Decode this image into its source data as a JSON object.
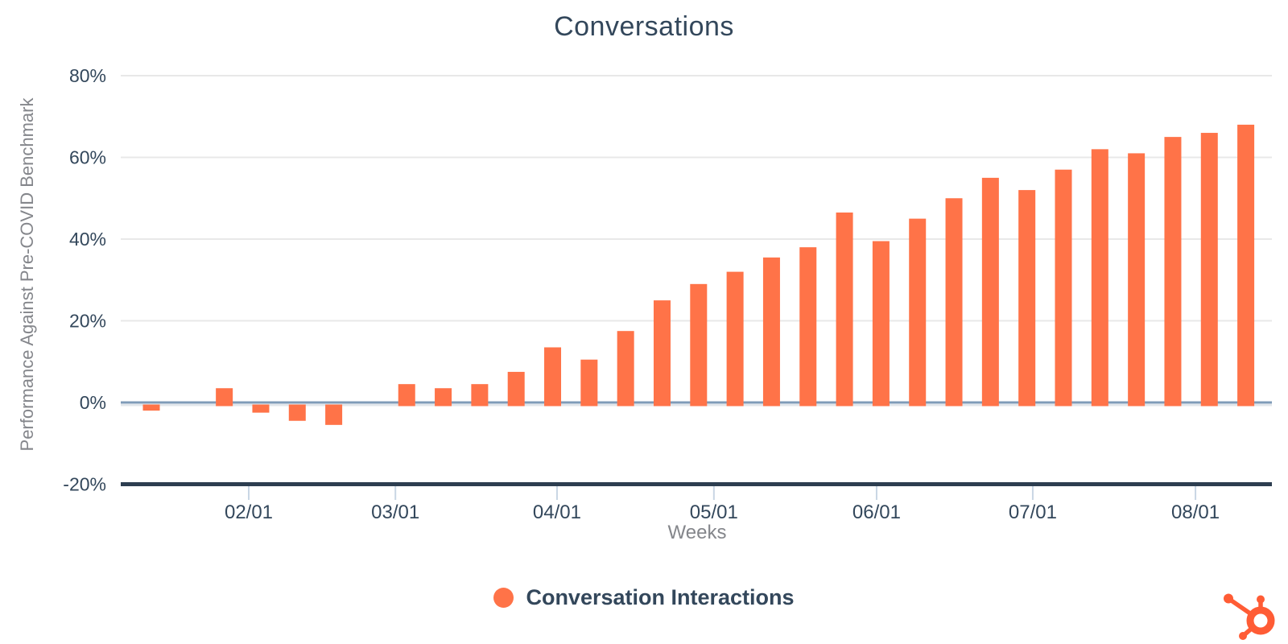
{
  "chart_data": {
    "type": "bar",
    "title": "Conversations",
    "xlabel": "Weeks",
    "ylabel": "Performance Against Pre-COVID Benchmark",
    "ylim": [
      -20,
      80
    ],
    "grid": true,
    "y_ticks": [
      {
        "value": 80,
        "label": "80%"
      },
      {
        "value": 60,
        "label": "60%"
      },
      {
        "value": 40,
        "label": "40%"
      },
      {
        "value": 20,
        "label": "20%"
      },
      {
        "value": 0,
        "label": "0%"
      },
      {
        "value": -20,
        "label": "-20%"
      }
    ],
    "x_ticks": [
      "02/01",
      "03/01",
      "04/01",
      "05/01",
      "06/01",
      "07/01",
      "08/01"
    ],
    "bar_interval": "weekly",
    "series": [
      {
        "name": "Conversation Interactions",
        "values": [
          -1,
          0,
          3.5,
          -1.5,
          -3.5,
          -4.5,
          0,
          4.5,
          3.5,
          4.5,
          7.5,
          13.5,
          10.5,
          17.5,
          25,
          29,
          32,
          35.5,
          38,
          46.5,
          39.5,
          45,
          50,
          55,
          52,
          57,
          62,
          61,
          65,
          66,
          68
        ]
      }
    ],
    "legend_position": "bottom-center",
    "value_unit": "%"
  },
  "colors": {
    "bar": "#ff7348",
    "legend_dot": "#ff7348",
    "zero_line": "#7f9bb8",
    "zero_line_shadow": "#e2e6eb",
    "gridline": "#e8e8e8",
    "axis_line": "#2d3e50",
    "tick_mark": "#c9d6e4",
    "tick_label": "#33475b",
    "axis_title": "#84868b",
    "title_text": "#33475b",
    "logo": "#ff5c35"
  },
  "branding": {
    "logo_name": "hubspot-sprocket"
  }
}
